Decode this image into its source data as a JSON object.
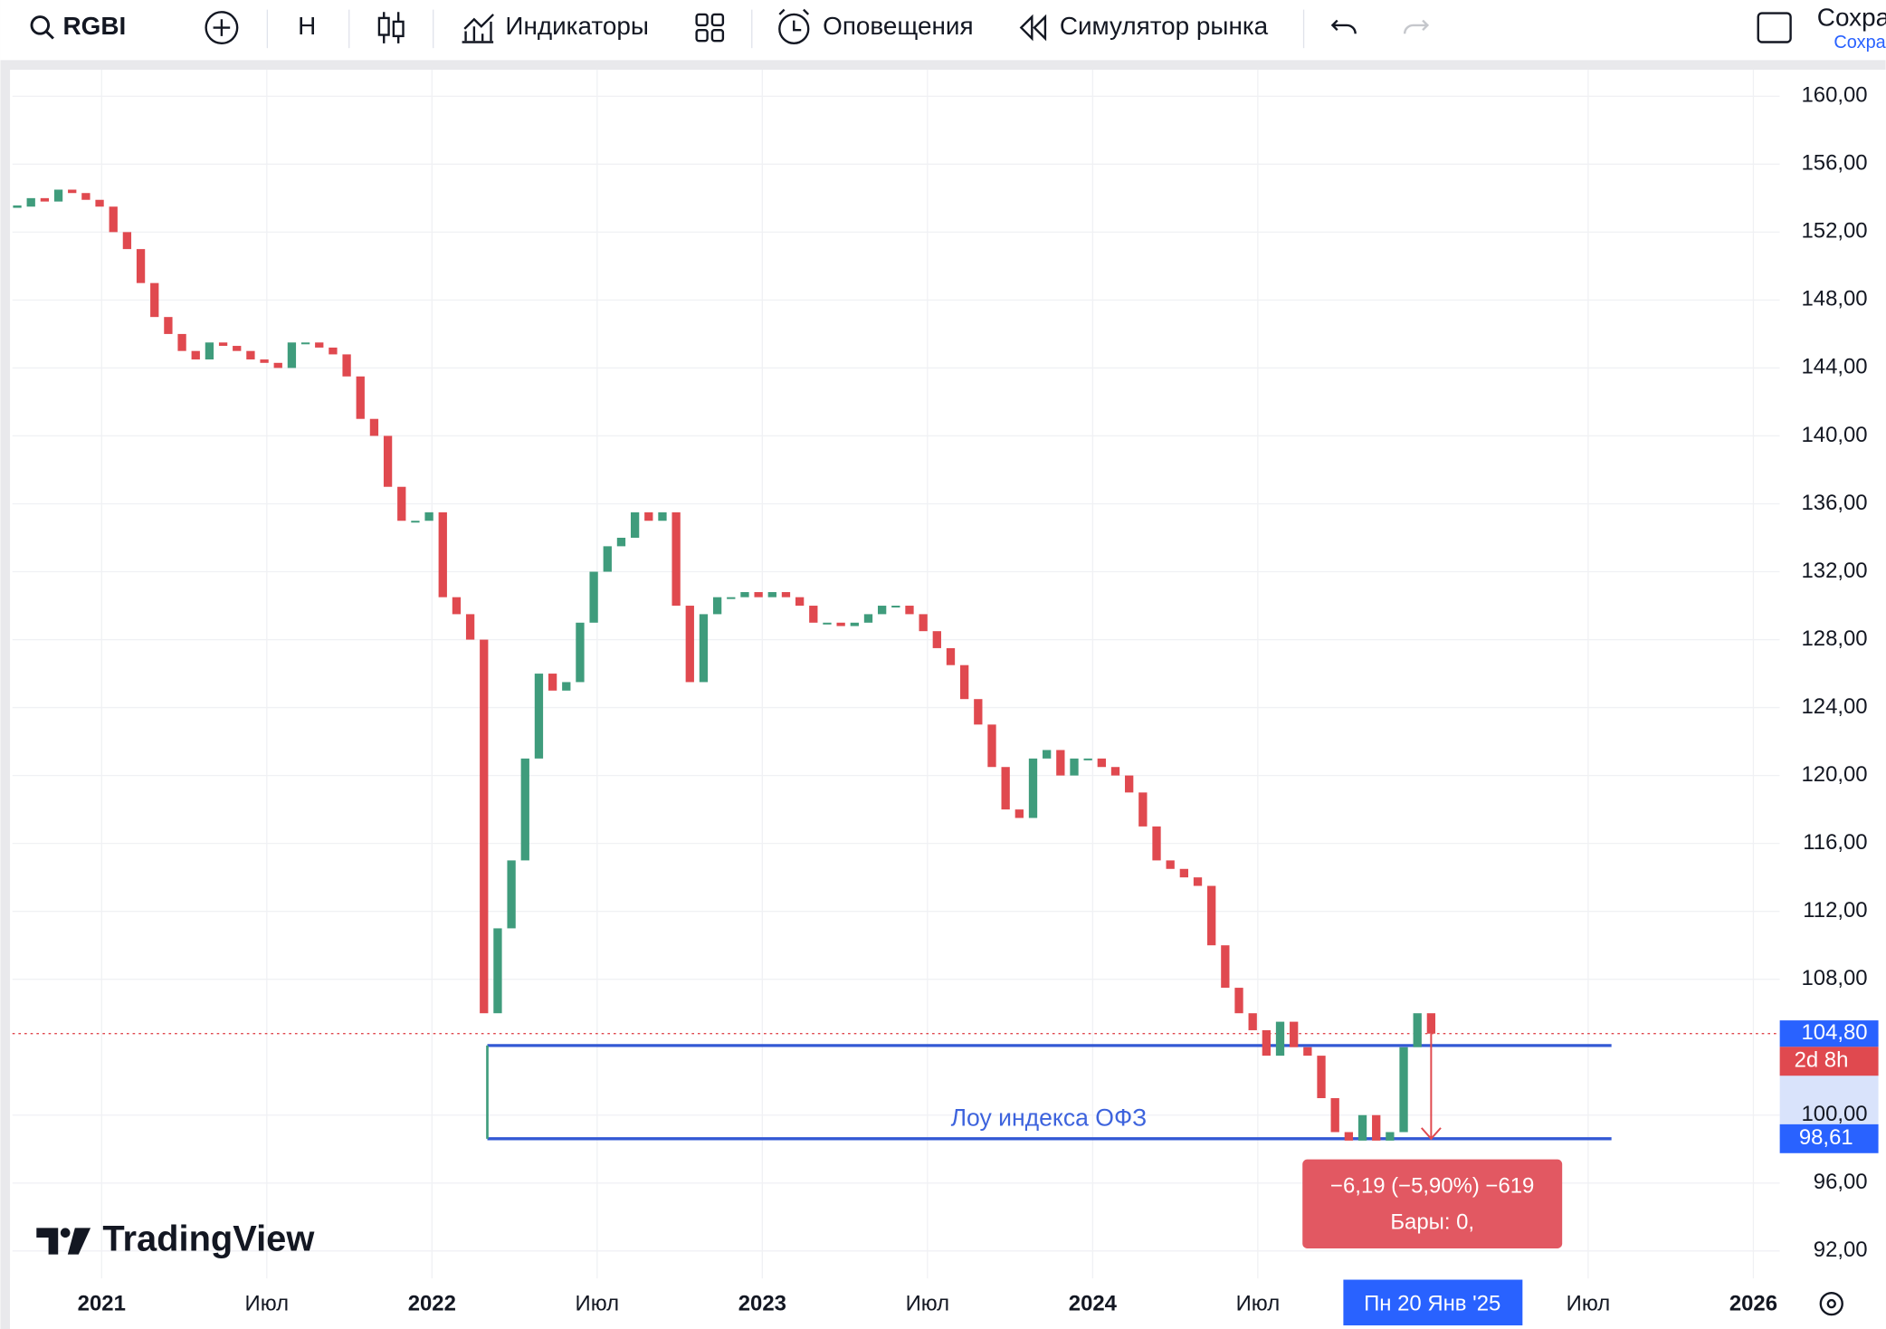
{
  "toolbar": {
    "symbol": "RGBI",
    "interval": "Н",
    "indicators": "Индикаторы",
    "alerts": "Оповещения",
    "replay": "Симулятор рынка",
    "save": "Сохра",
    "save_sub": "Сохра"
  },
  "chart_data": {
    "type": "candlestick",
    "values": [
      153.5,
      154,
      153.8,
      154.5,
      154.3,
      153.9,
      153.5,
      152,
      151,
      149,
      147,
      146,
      145,
      144.5,
      145.5,
      145.3,
      145,
      144.5,
      144.3,
      144,
      145.5,
      145.5,
      145.2,
      144.8,
      143.5,
      141,
      140,
      137,
      135,
      135,
      135.5,
      130.5,
      129.5,
      128,
      106,
      111,
      115,
      121,
      126,
      125,
      125.5,
      129,
      132,
      133.5,
      134,
      135.5,
      135,
      135.5,
      130,
      125.5,
      129.5,
      130.5,
      130.5,
      130.8,
      130.5,
      130.8,
      130.5,
      130,
      129,
      129,
      128.8,
      129,
      129.5,
      130,
      130,
      129.5,
      128.5,
      127.5,
      126.5,
      124.5,
      123,
      120.5,
      118,
      117.5,
      121,
      121.5,
      120,
      121,
      121,
      120.5,
      120,
      119,
      117,
      115,
      114.5,
      114,
      113.5,
      110,
      107.5,
      106,
      105,
      103.5,
      105.5,
      104,
      103.5,
      101,
      99,
      98.5,
      100,
      98.5,
      99,
      104,
      106,
      104.8
    ],
    "up_color": "#3f9c7c",
    "down_color": "#e0494f",
    "ylim": [
      90.38,
      161.56
    ],
    "yticks": [
      {
        "value": 160,
        "label": "160,00"
      },
      {
        "value": 156,
        "label": "156,00"
      },
      {
        "value": 152,
        "label": "152,00"
      },
      {
        "value": 148,
        "label": "148,00"
      },
      {
        "value": 144,
        "label": "144,00"
      },
      {
        "value": 140,
        "label": "140,00"
      },
      {
        "value": 136,
        "label": "136,00"
      },
      {
        "value": 132,
        "label": "132,00"
      },
      {
        "value": 128,
        "label": "128,00"
      },
      {
        "value": 124,
        "label": "124,00"
      },
      {
        "value": 120,
        "label": "120,00"
      },
      {
        "value": 116,
        "label": "116,00"
      },
      {
        "value": 112,
        "label": "112,00"
      },
      {
        "value": 108,
        "label": "108,00"
      },
      {
        "value": 100,
        "label": "100,00"
      },
      {
        "value": 96,
        "label": "96,00"
      },
      {
        "value": 92,
        "label": "92,00"
      }
    ],
    "xlim": [
      2020.73,
      2026.08
    ],
    "xticks": [
      2021,
      {
        "value": 2021.5,
        "label": "Июл"
      },
      2022,
      {
        "value": 2022.5,
        "label": "Июл"
      },
      2023,
      {
        "value": 2023.5,
        "label": "Июл"
      },
      2024,
      {
        "value": 2024.5,
        "label": "Июл"
      },
      {
        "value": 2025.5,
        "label": "Июл"
      },
      2026
    ],
    "grid": true,
    "hlines": [
      104.1,
      98.61
    ],
    "annotation": "Лоу индекса ОФЗ",
    "last_price": {
      "value": 104.8,
      "label": "104,80",
      "countdown": "2d 8h"
    },
    "crosshair_price": {
      "value": 98.61,
      "label": "98,61"
    },
    "crosshair_date": "Пн 20 Янв '25",
    "measure": {
      "text": "−6,19 (−5,90%) −619",
      "bars": "Бары: 0,"
    },
    "watermark": "TradingView"
  }
}
